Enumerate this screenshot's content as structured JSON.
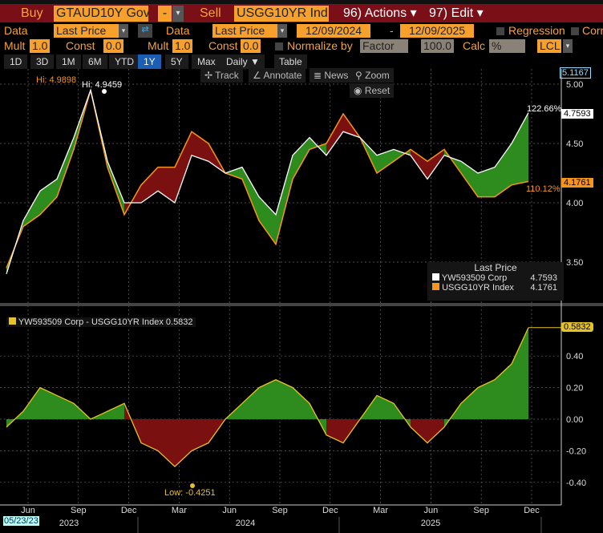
{
  "toolbar": {
    "buy_label": "Buy",
    "buy_ticker": "GTAUD10Y Gov",
    "op": "-",
    "sell_label": "Sell",
    "sell_ticker": "USGG10YR Ind",
    "actions": "96) Actions ▾",
    "edit": "97) Edit ▾"
  },
  "row2": {
    "data1_label": "Data",
    "data1_value": "Last Price",
    "data2_label": "Data",
    "data2_value": "Last Price",
    "start_date": "12/09/2024",
    "dash": "-",
    "end_date": "12/09/2025",
    "regression": "Regression",
    "corr": "Corr"
  },
  "row3": {
    "mult1_label": "Mult",
    "mult1": "1.0",
    "const1_label": "Const",
    "const1": "0.0",
    "mult2_label": "Mult",
    "mult2": "1.0",
    "const2_label": "Const",
    "const2": "0.0",
    "normalize_label": "Normalize by",
    "normalize_value": "Factor",
    "factor": "100.0",
    "calc_label": "Calc",
    "calc_value": "%",
    "currency": "LCL"
  },
  "timeframes": [
    "1D",
    "3D",
    "1M",
    "6M",
    "YTD",
    "1Y",
    "5Y",
    "Max"
  ],
  "active_timeframe": "1Y",
  "period": "Daily ▼",
  "table": "Table",
  "chart_tools": {
    "track": "Track",
    "annotate": "Annotate",
    "news": "News",
    "zoom": "Zoom",
    "reset": "Reset"
  },
  "annotations": {
    "hi_orange": "Hi: 4.9898",
    "hi_white": "Hi: 4.9459",
    "pct_white": "122.66%",
    "pct_orange": "110.12%",
    "low": "Low: -0.4251",
    "axis_top": "5.1167",
    "last_white": "4.7593",
    "last_orange": "4.1761",
    "last_spread": "0.5832",
    "start_date": "05/23/23"
  },
  "legend": {
    "title": "Last Price",
    "items": [
      {
        "name": "YW593509 Corp",
        "value": "4.7593",
        "color": "#ffffff"
      },
      {
        "name": "USGG10YR Index",
        "value": "4.1761",
        "color": "#f7941d"
      }
    ]
  },
  "spread_legend": "YW593509 Corp - USGG10YR Index 0.5832",
  "colors": {
    "toolbar": "#7a0f18",
    "orange": "#f7941d",
    "positive_fill": "#2e8b1e",
    "negative_fill": "#7a1010",
    "spread_line": "#e6c229"
  },
  "chart_data": [
    {
      "type": "line",
      "x": [
        "2023-05",
        "2023-06",
        "2023-07",
        "2023-08",
        "2023-09",
        "2023-10",
        "2023-11",
        "2023-12",
        "2024-01",
        "2024-02",
        "2024-03",
        "2024-04",
        "2024-05",
        "2024-06",
        "2024-07",
        "2024-08",
        "2024-09",
        "2024-10",
        "2024-11",
        "2024-12",
        "2025-01",
        "2025-02",
        "2025-03",
        "2025-04",
        "2025-05",
        "2025-06",
        "2025-07",
        "2025-08",
        "2025-09",
        "2025-10",
        "2025-11",
        "2025-12"
      ],
      "series": [
        {
          "name": "YW593509 Corp",
          "values": [
            3.4,
            3.85,
            4.1,
            4.2,
            4.55,
            4.95,
            4.35,
            4.0,
            4.0,
            4.1,
            4.0,
            4.4,
            4.35,
            4.25,
            4.3,
            4.05,
            3.9,
            4.4,
            4.55,
            4.4,
            4.6,
            4.55,
            4.4,
            4.45,
            4.4,
            4.2,
            4.4,
            4.35,
            4.25,
            4.3,
            4.5,
            4.76
          ]
        },
        {
          "name": "USGG10YR Index",
          "values": [
            3.45,
            3.8,
            3.9,
            4.05,
            4.45,
            4.95,
            4.3,
            3.9,
            4.15,
            4.3,
            4.3,
            4.6,
            4.5,
            4.25,
            4.2,
            3.85,
            3.65,
            4.2,
            4.45,
            4.5,
            4.75,
            4.55,
            4.25,
            4.35,
            4.45,
            4.35,
            4.45,
            4.25,
            4.05,
            4.05,
            4.15,
            4.18
          ]
        }
      ],
      "yticks": [
        "5.00",
        "4.50",
        "4.00",
        "3.50"
      ]
    },
    {
      "type": "area",
      "x": "same",
      "series": [
        {
          "name": "YW593509 Corp - USGG10YR Index",
          "values": [
            -0.05,
            0.05,
            0.2,
            0.15,
            0.1,
            0.0,
            0.05,
            0.1,
            -0.15,
            -0.2,
            -0.3,
            -0.2,
            -0.15,
            0.0,
            0.1,
            0.2,
            0.25,
            0.2,
            0.1,
            -0.1,
            -0.15,
            0.0,
            0.15,
            0.1,
            -0.05,
            -0.15,
            -0.05,
            0.1,
            0.2,
            0.25,
            0.35,
            0.58
          ]
        }
      ],
      "yticks": [
        "0.40",
        "0.20",
        "0.00",
        "-0.20",
        "-0.40"
      ]
    }
  ],
  "xaxis": {
    "months": [
      "Jun",
      "Sep",
      "Dec",
      "Mar",
      "Jun",
      "Sep",
      "Dec",
      "Mar",
      "Jun",
      "Sep",
      "Dec"
    ],
    "years": [
      "2023",
      "2024",
      "2025"
    ]
  }
}
